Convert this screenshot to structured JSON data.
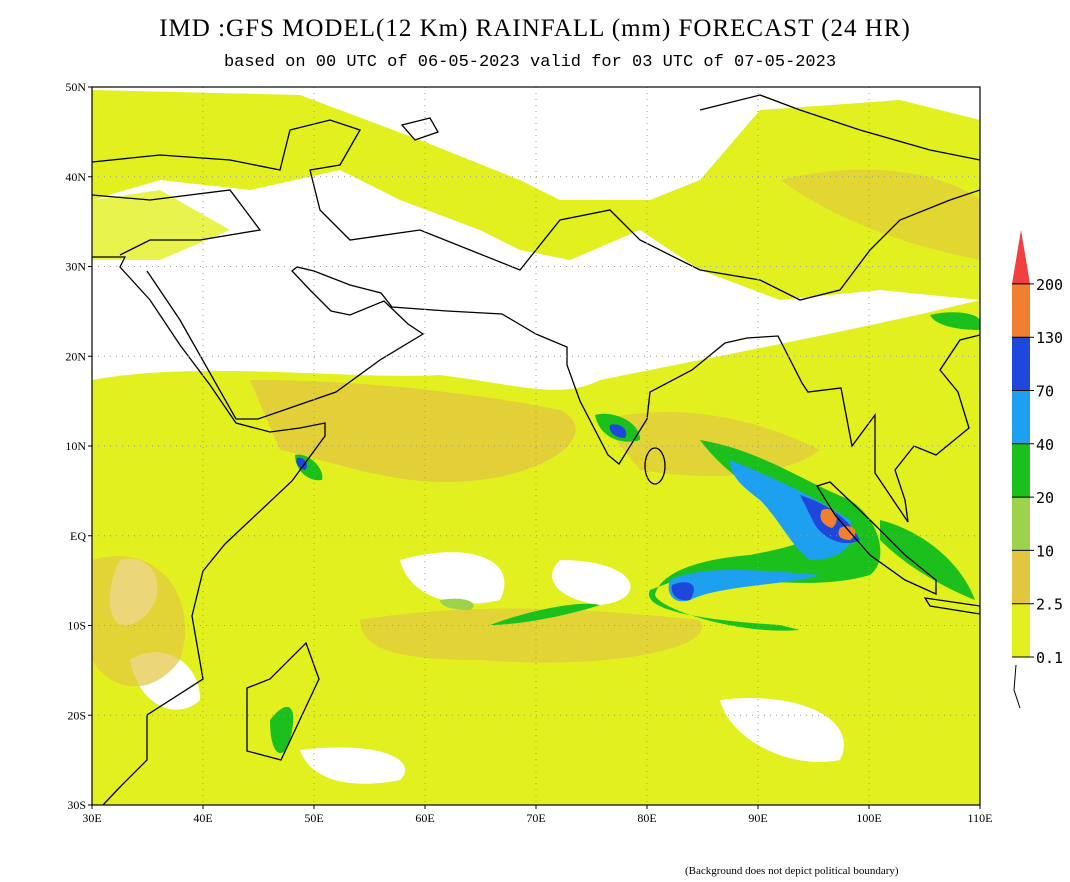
{
  "title": "IMD :GFS MODEL(12 Km) RAINFALL (mm) FORECAST (24 HR)",
  "subtitle": "based on 00 UTC of 06-05-2023 valid for 03 UTC of 07-05-2023",
  "map": {
    "lon_labels": [
      "30E",
      "40E",
      "50E",
      "60E",
      "70E",
      "80E",
      "90E",
      "100E",
      "110E"
    ],
    "lat_labels": [
      "50N",
      "40N",
      "30N",
      "20N",
      "10N",
      "EQ",
      "10S",
      "20S",
      "30S"
    ]
  },
  "legend": {
    "levels": [
      0.1,
      2.5,
      10,
      20,
      40,
      70,
      130,
      200
    ],
    "colors": [
      "#e2f020",
      "#e3c640",
      "#9dd24c",
      "#1cc01c",
      "#1ea0f0",
      "#1e48dc",
      "#f08030",
      "#f04040"
    ]
  },
  "footnote": "(Background does not depict political boundary)"
}
